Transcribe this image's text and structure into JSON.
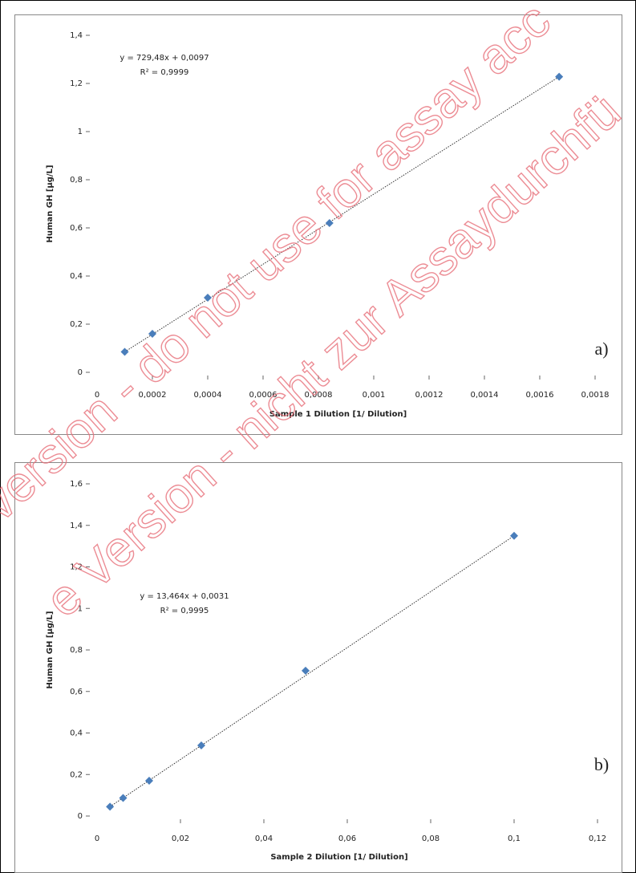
{
  "chart_data": [
    {
      "type": "scatter",
      "x_label": "Sample 1 Dilution [1/ Dilution]",
      "y_label": "Human GH [µg/L]",
      "equation": "y = 729,48x + 0,0097",
      "r_squared": "R² = 0,9999",
      "panel_label": "a)",
      "color": "#4a7ebb",
      "series": [
        {
          "x": [
            0.0001,
            0.0002,
            0.0004,
            0.00084,
            0.00167
          ],
          "values": [
            0.085,
            0.16,
            0.31,
            0.62,
            1.228
          ]
        }
      ],
      "xlim": [
        0,
        0.0018
      ],
      "xticks": [
        0,
        {
          "value": 0.0002,
          "label": "0,0002"
        },
        {
          "value": 0.0004,
          "label": "0,0004"
        },
        {
          "value": 0.0006,
          "label": "0,0006"
        },
        {
          "value": 0.0008,
          "label": "0,0008"
        },
        {
          "value": 0.001,
          "label": "0,001"
        },
        {
          "value": 0.0012,
          "label": "0,0012"
        },
        {
          "value": 0.0014,
          "label": "0,0014"
        },
        {
          "value": 0.0016,
          "label": "0,0016"
        },
        {
          "value": 0.0018,
          "label": "0,0018"
        }
      ],
      "ylim": [
        0,
        1.4
      ],
      "yticks": [
        0,
        {
          "value": 0.2,
          "label": "0,2"
        },
        {
          "value": 0.4,
          "label": "0,4"
        },
        {
          "value": 0.6,
          "label": "0,6"
        },
        {
          "value": 0.8,
          "label": "0,8"
        },
        1,
        {
          "value": 1.2,
          "label": "1,2"
        },
        {
          "value": 1.4,
          "label": "1,4"
        }
      ]
    },
    {
      "type": "scatter",
      "x_label": "Sample 2 Dilution [1/ Dilution]",
      "y_label": "Human GH [µg/L]",
      "equation": "y = 13,464x + 0,0031",
      "r_squared": "R² = 0,9995",
      "panel_label": "b)",
      "color": "#4a7ebb",
      "series": [
        {
          "x": [
            0.0031,
            0.00625,
            0.0125,
            0.025,
            0.05,
            0.1
          ],
          "values": [
            0.045,
            0.087,
            0.17,
            0.34,
            0.7,
            1.35
          ]
        }
      ],
      "xlim": [
        0,
        0.12
      ],
      "xticks": [
        0,
        {
          "value": 0.02,
          "label": "0,02"
        },
        {
          "value": 0.04,
          "label": "0,04"
        },
        {
          "value": 0.06,
          "label": "0,06"
        },
        {
          "value": 0.08,
          "label": "0,08"
        },
        {
          "value": 0.1,
          "label": "0,1"
        },
        {
          "value": 0.12,
          "label": "0,12"
        }
      ],
      "ylim": [
        0,
        1.6
      ],
      "yticks": [
        0,
        {
          "value": 0.2,
          "label": "0,2"
        },
        {
          "value": 0.4,
          "label": "0,4"
        },
        {
          "value": 0.6,
          "label": "0,6"
        },
        {
          "value": 0.8,
          "label": "0,8"
        },
        1,
        {
          "value": 1.2,
          "label": "1,2"
        },
        {
          "value": 1.4,
          "label": "1,4"
        },
        {
          "value": 1.6,
          "label": "1,6"
        }
      ]
    }
  ],
  "watermark": [
    "version - do not use for assay acc",
    "e Version - nicht zur Assaydurchfü"
  ]
}
